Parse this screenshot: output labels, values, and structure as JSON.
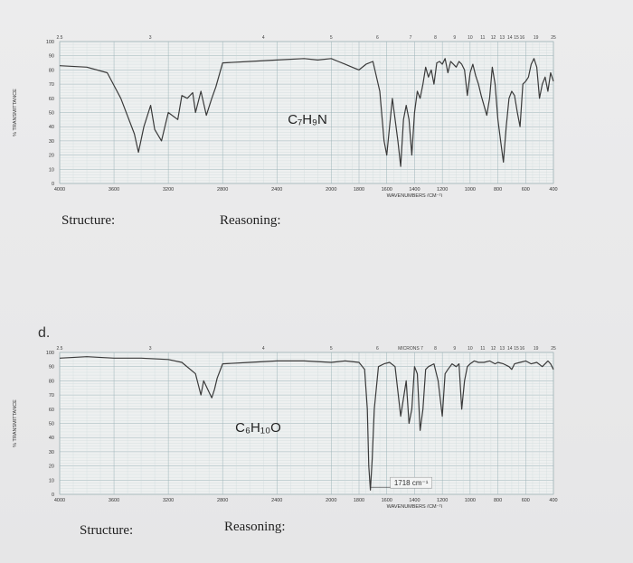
{
  "part_letter": "d.",
  "chart_data": [
    {
      "type": "line",
      "formula": "C₇H₉N",
      "ylabel": "% TRANSMITTANCE",
      "xlabel": "WAVENUMBERS (CM⁻¹)",
      "y_ticks": [
        "100",
        "90",
        "80",
        "70",
        "60",
        "50",
        "40",
        "30",
        "20",
        "10",
        "0"
      ],
      "x_ticks": [
        "4000",
        "3600",
        "3200",
        "2800",
        "2400",
        "2000",
        "1800",
        "1600",
        "1400",
        "1200",
        "1000",
        "800",
        "600",
        "400"
      ],
      "top_ticks": [
        "2.5",
        "3",
        "4",
        "5",
        "6",
        "7",
        "8",
        "9",
        "10",
        "11",
        "12",
        "13",
        "14",
        "15",
        "16",
        "19",
        "25"
      ],
      "ylim": [
        0,
        100
      ],
      "xlim": [
        4000,
        400
      ],
      "x": [
        4000,
        3800,
        3650,
        3550,
        3450,
        3420,
        3380,
        3330,
        3300,
        3250,
        3200,
        3130,
        3100,
        3060,
        3020,
        3000,
        2960,
        2920,
        2880,
        2850,
        2800,
        2600,
        2400,
        2200,
        2100,
        2000,
        1950,
        1900,
        1850,
        1800,
        1750,
        1700,
        1650,
        1620,
        1600,
        1580,
        1560,
        1520,
        1500,
        1480,
        1460,
        1440,
        1420,
        1400,
        1380,
        1360,
        1340,
        1320,
        1300,
        1280,
        1260,
        1240,
        1220,
        1200,
        1180,
        1160,
        1140,
        1120,
        1100,
        1080,
        1060,
        1040,
        1020,
        1000,
        980,
        960,
        940,
        920,
        900,
        880,
        860,
        840,
        820,
        800,
        780,
        760,
        740,
        720,
        700,
        680,
        660,
        640,
        620,
        600,
        580,
        560,
        540,
        520,
        500,
        480,
        460,
        440,
        420,
        400
      ],
      "y": [
        83,
        82,
        78,
        60,
        35,
        22,
        40,
        55,
        38,
        30,
        50,
        45,
        62,
        60,
        64,
        50,
        65,
        48,
        60,
        68,
        85,
        86,
        87,
        88,
        87,
        88,
        86,
        84,
        82,
        80,
        84,
        86,
        65,
        30,
        20,
        40,
        60,
        30,
        12,
        45,
        55,
        45,
        20,
        50,
        65,
        60,
        70,
        82,
        75,
        80,
        70,
        85,
        86,
        84,
        88,
        78,
        86,
        84,
        82,
        86,
        84,
        80,
        62,
        78,
        84,
        76,
        70,
        62,
        55,
        48,
        60,
        82,
        70,
        45,
        30,
        15,
        40,
        60,
        65,
        62,
        50,
        40,
        70,
        72,
        75,
        84,
        88,
        82,
        60,
        70,
        75,
        65,
        78,
        72
      ],
      "annotations": []
    },
    {
      "type": "line",
      "formula": "C₆H₁₀O",
      "ylabel": "% TRANSMITTANCE",
      "xlabel": "WAVENUMBERS (CM⁻¹)",
      "y_ticks": [
        "100",
        "90",
        "80",
        "70",
        "60",
        "50",
        "40",
        "30",
        "20",
        "10",
        "0"
      ],
      "x_ticks": [
        "4000",
        "3600",
        "3200",
        "2800",
        "2400",
        "2000",
        "1800",
        "1600",
        "1400",
        "1200",
        "1000",
        "800",
        "600",
        "400"
      ],
      "top_ticks": [
        "2.5",
        "3",
        "4",
        "5",
        "6",
        "MICRONS 7",
        "8",
        "9",
        "10",
        "11",
        "12",
        "13",
        "14",
        "15",
        "16",
        "19",
        "25"
      ],
      "ylim": [
        0,
        100
      ],
      "xlim": [
        4000,
        400
      ],
      "x": [
        4000,
        3800,
        3600,
        3400,
        3200,
        3100,
        3000,
        2960,
        2940,
        2900,
        2880,
        2860,
        2840,
        2800,
        2600,
        2400,
        2200,
        2000,
        1900,
        1800,
        1760,
        1740,
        1730,
        1718,
        1705,
        1690,
        1660,
        1620,
        1580,
        1540,
        1500,
        1460,
        1440,
        1420,
        1400,
        1380,
        1360,
        1340,
        1320,
        1300,
        1260,
        1230,
        1200,
        1180,
        1160,
        1130,
        1100,
        1080,
        1060,
        1040,
        1020,
        1000,
        970,
        940,
        900,
        860,
        820,
        800,
        760,
        720,
        700,
        680,
        640,
        600,
        560,
        520,
        480,
        440,
        420,
        400
      ],
      "y": [
        96,
        97,
        96,
        96,
        95,
        93,
        85,
        70,
        80,
        72,
        68,
        74,
        82,
        92,
        93,
        94,
        94,
        93,
        94,
        93,
        88,
        60,
        20,
        3,
        25,
        60,
        90,
        92,
        93,
        90,
        55,
        80,
        50,
        60,
        90,
        85,
        45,
        60,
        88,
        90,
        92,
        80,
        55,
        85,
        88,
        92,
        90,
        92,
        60,
        80,
        90,
        92,
        94,
        93,
        93,
        94,
        92,
        93,
        92,
        90,
        88,
        92,
        93,
        94,
        92,
        93,
        90,
        94,
        92,
        88
      ],
      "annotations": [
        {
          "label": "1718 cm⁻¹",
          "x": 1718
        }
      ]
    }
  ],
  "labels": {
    "structure_1": "Structure:",
    "reasoning_1": "Reasoning:",
    "structure_2": "Structure:",
    "reasoning_2": "Reasoning:"
  }
}
